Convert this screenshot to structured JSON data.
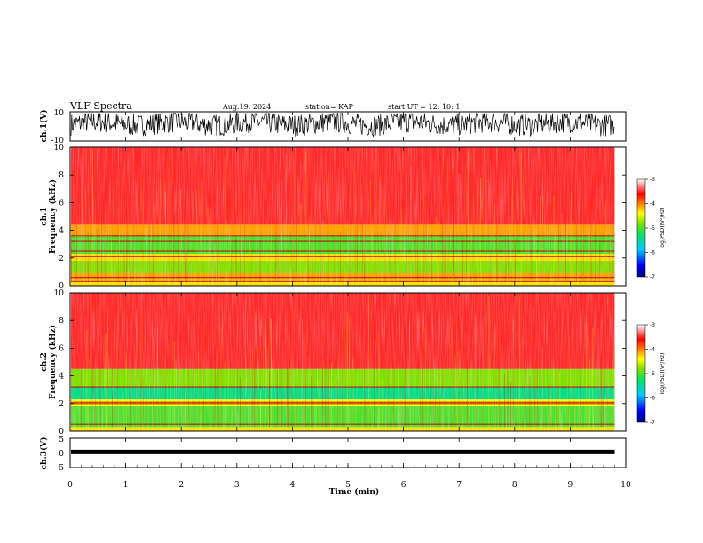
{
  "header": {
    "title": "VLF Spectra",
    "date": "Aug.19, 2024",
    "station": "station= KAP",
    "start": "start  UT  =   12: 10: 1"
  },
  "chart_data": [
    {
      "type": "line",
      "panel": "ch1-waveform",
      "ylabel": "ch.1(V)",
      "ylim": [
        -10,
        10
      ],
      "yticks": [
        "10",
        "-10"
      ],
      "xlim": [
        0,
        10
      ],
      "x_extent_min": [
        0,
        9.8
      ],
      "baseline_v": 2,
      "fluctuation_v": [
        -8,
        9
      ],
      "color": "#000000"
    },
    {
      "type": "heatmap",
      "panel": "ch1-spectrogram",
      "ylabel": "ch.1\nFrequency  (kHz)",
      "ylim": [
        0,
        10
      ],
      "yticks": [
        "0",
        "2",
        "4",
        "6",
        "8",
        "10"
      ],
      "xlim": [
        0,
        10
      ],
      "x_extent_min": [
        0,
        9.8
      ],
      "bands": [
        {
          "f": [
            0,
            0.4
          ],
          "log_psd": -4.3
        },
        {
          "f": [
            0.4,
            0.9
          ],
          "log_psd": -4.1
        },
        {
          "f": [
            0.9,
            1.8
          ],
          "log_psd": -4.8
        },
        {
          "f": [
            1.8,
            2.3
          ],
          "log_psd": -4.3
        },
        {
          "f": [
            2.3,
            3.6
          ],
          "log_psd": -5.0
        },
        {
          "f": [
            3.6,
            4.4
          ],
          "log_psd": -4.1
        },
        {
          "f": [
            4.4,
            10
          ],
          "log_psd": -3.5
        }
      ],
      "lines_khz": [
        0.3,
        0.6,
        2.1,
        2.5,
        3.2,
        3.6
      ],
      "colorbar": {
        "label": "log(PSD)(V²/Hz)",
        "range": [
          -7,
          -3
        ],
        "ticks": [
          "-3",
          "-4",
          "-5",
          "-6",
          "-7"
        ]
      }
    },
    {
      "type": "heatmap",
      "panel": "ch2-spectrogram",
      "ylabel": "ch.2\nFrequency  (kHz)",
      "ylim": [
        0,
        10
      ],
      "yticks": [
        "0",
        "2",
        "4",
        "6",
        "8",
        "10"
      ],
      "xlim": [
        0,
        10
      ],
      "x_extent_min": [
        0,
        9.8
      ],
      "bands": [
        {
          "f": [
            0,
            0.3
          ],
          "log_psd": -4.3
        },
        {
          "f": [
            0.3,
            1.8
          ],
          "log_psd": -5.0
        },
        {
          "f": [
            1.8,
            2.3
          ],
          "log_psd": -4.4
        },
        {
          "f": [
            2.3,
            3.2
          ],
          "log_psd": -5.4
        },
        {
          "f": [
            3.2,
            4.5
          ],
          "log_psd": -4.8
        },
        {
          "f": [
            4.5,
            10
          ],
          "log_psd": -3.5
        }
      ],
      "lines_khz": [
        0.5,
        2.0,
        2.1,
        3.2
      ],
      "colorbar": {
        "label": "log(PSD)(V²/Hz)",
        "range": [
          -7,
          -3
        ],
        "ticks": [
          "-3",
          "-4",
          "-5",
          "-6",
          "-7"
        ]
      }
    },
    {
      "type": "line",
      "panel": "ch3-waveform",
      "ylabel": "ch.3(V)",
      "ylim": [
        -5,
        5
      ],
      "yticks": [
        "5",
        "0",
        "-5"
      ],
      "xlim": [
        0,
        10
      ],
      "x_extent_min": [
        0,
        9.8
      ],
      "baseline_v": 0,
      "fluctuation_v": [
        -0.5,
        0.5
      ],
      "color": "#000000"
    }
  ],
  "xaxis": {
    "label": "Time  (min)",
    "ticks": [
      "0",
      "1",
      "2",
      "3",
      "4",
      "5",
      "6",
      "7",
      "8",
      "9",
      "10"
    ]
  }
}
